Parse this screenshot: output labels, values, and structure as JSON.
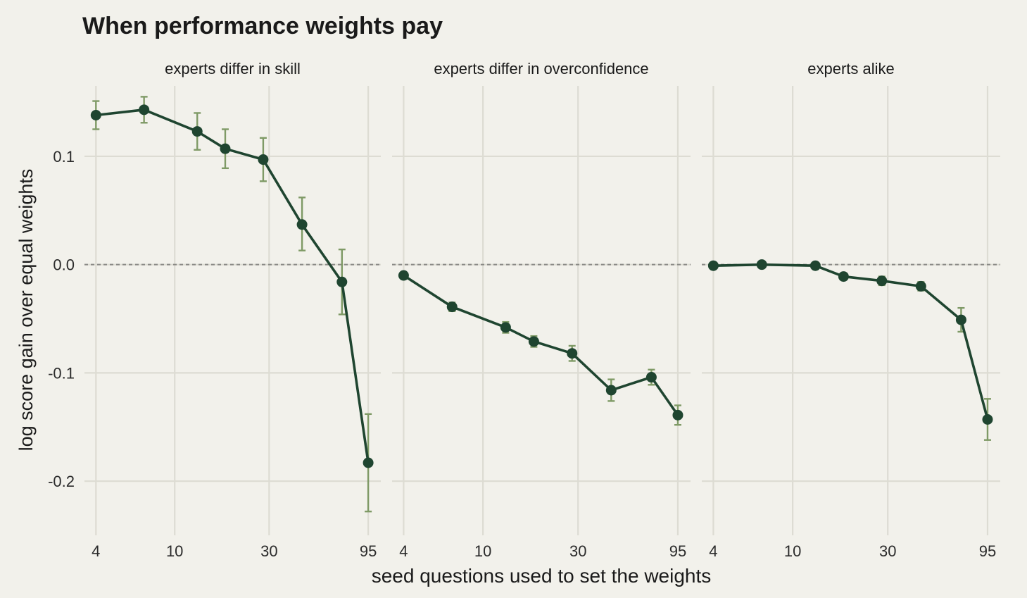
{
  "chart_data": {
    "type": "line",
    "title": "When performance weights pay",
    "xlabel": "seed questions used to set the weights",
    "ylabel": "log score gain over equal weights",
    "x_scale": "log",
    "x_ticks": [
      4,
      10,
      30,
      95
    ],
    "y_ticks": [
      0.1,
      0.0,
      -0.1,
      -0.2
    ],
    "y_tick_labels": [
      "0.1",
      "0.0",
      "-0.1",
      "-0.2"
    ],
    "ylim": [
      -0.25,
      0.165
    ],
    "xlim": [
      3.5,
      110
    ],
    "reference_line": {
      "y": 0,
      "style": "dashed"
    },
    "grid": true,
    "colors": {
      "background": "#f2f1eb",
      "grid": "#dddcd3",
      "line": "#1f4530",
      "point": "#1f4530",
      "errorbar": "#7f9a66",
      "reference": "#8a8a86",
      "text": "#1a1a1a"
    },
    "panels": [
      {
        "label": "experts differ in skill",
        "points": [
          {
            "x": 4,
            "y": 0.138,
            "lo": 0.125,
            "hi": 0.151
          },
          {
            "x": 7,
            "y": 0.143,
            "lo": 0.131,
            "hi": 0.155
          },
          {
            "x": 13,
            "y": 0.123,
            "lo": 0.106,
            "hi": 0.14
          },
          {
            "x": 18,
            "y": 0.107,
            "lo": 0.089,
            "hi": 0.125
          },
          {
            "x": 28,
            "y": 0.097,
            "lo": 0.077,
            "hi": 0.117
          },
          {
            "x": 44,
            "y": 0.037,
            "lo": 0.013,
            "hi": 0.062
          },
          {
            "x": 70,
            "y": -0.016,
            "lo": -0.046,
            "hi": 0.014
          },
          {
            "x": 95,
            "y": -0.183,
            "lo": -0.228,
            "hi": -0.138
          }
        ]
      },
      {
        "label": "experts differ in overconfidence",
        "points": [
          {
            "x": 4,
            "y": -0.01,
            "lo": -0.012,
            "hi": -0.008
          },
          {
            "x": 7,
            "y": -0.039,
            "lo": -0.043,
            "hi": -0.035
          },
          {
            "x": 13,
            "y": -0.058,
            "lo": -0.063,
            "hi": -0.053
          },
          {
            "x": 18,
            "y": -0.071,
            "lo": -0.076,
            "hi": -0.066
          },
          {
            "x": 28,
            "y": -0.082,
            "lo": -0.089,
            "hi": -0.075
          },
          {
            "x": 44,
            "y": -0.116,
            "lo": -0.126,
            "hi": -0.106
          },
          {
            "x": 70,
            "y": -0.104,
            "lo": -0.111,
            "hi": -0.097
          },
          {
            "x": 95,
            "y": -0.139,
            "lo": -0.148,
            "hi": -0.13
          }
        ]
      },
      {
        "label": "experts alike",
        "points": [
          {
            "x": 4,
            "y": -0.001,
            "lo": -0.003,
            "hi": 0.001
          },
          {
            "x": 7,
            "y": 0.0,
            "lo": -0.002,
            "hi": 0.002
          },
          {
            "x": 13,
            "y": -0.001,
            "lo": -0.003,
            "hi": 0.001
          },
          {
            "x": 18,
            "y": -0.011,
            "lo": -0.014,
            "hi": -0.008
          },
          {
            "x": 28,
            "y": -0.015,
            "lo": -0.019,
            "hi": -0.011
          },
          {
            "x": 44,
            "y": -0.02,
            "lo": -0.024,
            "hi": -0.016
          },
          {
            "x": 70,
            "y": -0.051,
            "lo": -0.062,
            "hi": -0.04
          },
          {
            "x": 95,
            "y": -0.143,
            "lo": -0.162,
            "hi": -0.124
          }
        ]
      }
    ]
  }
}
